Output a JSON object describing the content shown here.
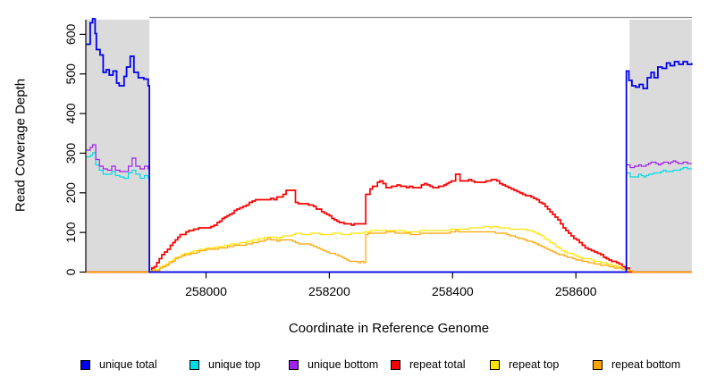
{
  "figure": {
    "background": "#FFFFFF",
    "axis_color": "#000000",
    "top_border_color": "#8A8A8A"
  },
  "legend": {
    "items": [
      {
        "label": "unique total",
        "color": "#0000EE"
      },
      {
        "label": "unique top",
        "color": "#00DDE6"
      },
      {
        "label": "unique bottom",
        "color": "#A020F0"
      },
      {
        "label": "repeat total",
        "color": "#FF0000"
      },
      {
        "label": "repeat top",
        "color": "#FFE400"
      },
      {
        "label": "repeat bottom",
        "color": "#FFA500"
      }
    ]
  },
  "chart_data": {
    "type": "line",
    "title": "",
    "xlabel": "Coordinate in Reference Genome",
    "ylabel": "Read Coverage Depth",
    "xlim": [
      257806,
      258788
    ],
    "ylim": [
      0,
      645
    ],
    "x_ticks": [
      258000,
      258200,
      258400,
      258600
    ],
    "y_ticks": [
      0,
      100,
      200,
      300,
      400,
      500,
      600
    ],
    "grid": false,
    "legend_position": "bottom",
    "shade_color": "#DBDBDB",
    "shaded_regions": [
      {
        "from": 257806,
        "to": 257908
      },
      {
        "from": 258687,
        "to": 258788
      }
    ],
    "series": [
      {
        "name": "unique total",
        "color": "#0000EE",
        "points": [
          [
            257806,
            578
          ],
          [
            257812,
            630
          ],
          [
            257816,
            637
          ],
          [
            257820,
            600
          ],
          [
            257822,
            560
          ],
          [
            257828,
            548
          ],
          [
            257833,
            505
          ],
          [
            257838,
            512
          ],
          [
            257843,
            500
          ],
          [
            257849,
            512
          ],
          [
            257855,
            480
          ],
          [
            257863,
            470
          ],
          [
            257871,
            520
          ],
          [
            257877,
            548
          ],
          [
            257883,
            508
          ],
          [
            257890,
            495
          ],
          [
            257899,
            488
          ],
          [
            257906,
            470
          ],
          [
            257908,
            0
          ],
          [
            258680,
            0
          ],
          [
            258682,
            512
          ],
          [
            258686,
            490
          ],
          [
            258691,
            475
          ],
          [
            258697,
            472
          ],
          [
            258703,
            478
          ],
          [
            258709,
            468
          ],
          [
            258716,
            492
          ],
          [
            258722,
            508
          ],
          [
            258727,
            495
          ],
          [
            258733,
            520
          ],
          [
            258740,
            515
          ],
          [
            258747,
            528
          ],
          [
            258753,
            522
          ],
          [
            258760,
            532
          ],
          [
            258767,
            526
          ],
          [
            258774,
            533
          ],
          [
            258781,
            527
          ],
          [
            258788,
            528
          ]
        ]
      },
      {
        "name": "unique top",
        "color": "#00DDE6",
        "points": [
          [
            257806,
            290
          ],
          [
            257812,
            298
          ],
          [
            257816,
            302
          ],
          [
            257821,
            272
          ],
          [
            257827,
            258
          ],
          [
            257833,
            250
          ],
          [
            257840,
            246
          ],
          [
            257847,
            252
          ],
          [
            257853,
            242
          ],
          [
            257860,
            238
          ],
          [
            257867,
            234
          ],
          [
            257874,
            248
          ],
          [
            257880,
            258
          ],
          [
            257886,
            248
          ],
          [
            257893,
            240
          ],
          [
            257900,
            248
          ],
          [
            257906,
            242
          ],
          [
            257908,
            0
          ],
          [
            258680,
            0
          ],
          [
            258682,
            248
          ],
          [
            258688,
            238
          ],
          [
            258695,
            236
          ],
          [
            258702,
            242
          ],
          [
            258710,
            238
          ],
          [
            258718,
            244
          ],
          [
            258726,
            248
          ],
          [
            258734,
            246
          ],
          [
            258742,
            252
          ],
          [
            258750,
            250
          ],
          [
            258758,
            256
          ],
          [
            258766,
            254
          ],
          [
            258774,
            260
          ],
          [
            258781,
            258
          ],
          [
            258788,
            262
          ]
        ]
      },
      {
        "name": "unique bottom",
        "color": "#A020F0",
        "points": [
          [
            257806,
            308
          ],
          [
            257812,
            315
          ],
          [
            257816,
            320
          ],
          [
            257821,
            285
          ],
          [
            257827,
            266
          ],
          [
            257833,
            258
          ],
          [
            257840,
            255
          ],
          [
            257847,
            262
          ],
          [
            257853,
            252
          ],
          [
            257860,
            250
          ],
          [
            257867,
            248
          ],
          [
            257874,
            262
          ],
          [
            257880,
            285
          ],
          [
            257886,
            262
          ],
          [
            257893,
            255
          ],
          [
            257900,
            262
          ],
          [
            257906,
            255
          ],
          [
            257908,
            0
          ],
          [
            258680,
            0
          ],
          [
            258682,
            268
          ],
          [
            258688,
            262
          ],
          [
            258695,
            264
          ],
          [
            258702,
            270
          ],
          [
            258710,
            266
          ],
          [
            258718,
            272
          ],
          [
            258726,
            278
          ],
          [
            258734,
            270
          ],
          [
            258742,
            274
          ],
          [
            258750,
            272
          ],
          [
            258758,
            276
          ],
          [
            258766,
            272
          ],
          [
            258774,
            276
          ],
          [
            258781,
            272
          ],
          [
            258788,
            274
          ]
        ]
      },
      {
        "name": "repeat total",
        "color": "#FF0000",
        "points": [
          [
            257806,
            0
          ],
          [
            257908,
            0
          ],
          [
            257916,
            14
          ],
          [
            257928,
            42
          ],
          [
            257942,
            68
          ],
          [
            257958,
            92
          ],
          [
            257972,
            102
          ],
          [
            257988,
            107
          ],
          [
            258003,
            112
          ],
          [
            258018,
            122
          ],
          [
            258034,
            140
          ],
          [
            258050,
            158
          ],
          [
            258065,
            170
          ],
          [
            258080,
            182
          ],
          [
            258095,
            184
          ],
          [
            258110,
            183
          ],
          [
            258120,
            190
          ],
          [
            258130,
            203
          ],
          [
            258138,
            205
          ],
          [
            258145,
            175
          ],
          [
            258158,
            172
          ],
          [
            258170,
            168
          ],
          [
            258183,
            158
          ],
          [
            258196,
            142
          ],
          [
            258208,
            128
          ],
          [
            258220,
            120
          ],
          [
            258232,
            117
          ],
          [
            258244,
            118
          ],
          [
            258256,
            121
          ],
          [
            258259,
            196
          ],
          [
            258266,
            208
          ],
          [
            258274,
            216
          ],
          [
            258282,
            228
          ],
          [
            258292,
            215
          ],
          [
            258310,
            221
          ],
          [
            258325,
            214
          ],
          [
            258340,
            212
          ],
          [
            258354,
            224
          ],
          [
            258368,
            216
          ],
          [
            258382,
            220
          ],
          [
            258398,
            231
          ],
          [
            258405,
            246
          ],
          [
            258412,
            230
          ],
          [
            258426,
            236
          ],
          [
            258440,
            226
          ],
          [
            258454,
            231
          ],
          [
            258467,
            235
          ],
          [
            258481,
            222
          ],
          [
            258495,
            208
          ],
          [
            258509,
            200
          ],
          [
            258523,
            193
          ],
          [
            258536,
            186
          ],
          [
            258550,
            168
          ],
          [
            258562,
            150
          ],
          [
            258575,
            125
          ],
          [
            258588,
            100
          ],
          [
            258601,
            82
          ],
          [
            258615,
            66
          ],
          [
            258630,
            52
          ],
          [
            258645,
            42
          ],
          [
            258658,
            32
          ],
          [
            258670,
            22
          ],
          [
            258680,
            10
          ],
          [
            258687,
            3
          ],
          [
            258692,
            0
          ],
          [
            258788,
            0
          ]
        ]
      },
      {
        "name": "repeat top",
        "color": "#FFE400",
        "points": [
          [
            257806,
            0
          ],
          [
            257908,
            0
          ],
          [
            257920,
            8
          ],
          [
            257935,
            24
          ],
          [
            257950,
            38
          ],
          [
            257965,
            48
          ],
          [
            257980,
            55
          ],
          [
            257995,
            60
          ],
          [
            258010,
            63
          ],
          [
            258025,
            67
          ],
          [
            258040,
            72
          ],
          [
            258055,
            74
          ],
          [
            258070,
            77
          ],
          [
            258085,
            84
          ],
          [
            258100,
            90
          ],
          [
            258115,
            88
          ],
          [
            258130,
            93
          ],
          [
            258145,
            98
          ],
          [
            258160,
            97
          ],
          [
            258175,
            99
          ],
          [
            258190,
            97
          ],
          [
            258205,
            98
          ],
          [
            258220,
            96
          ],
          [
            258235,
            98
          ],
          [
            258250,
            97
          ],
          [
            258257,
            100
          ],
          [
            258272,
            103
          ],
          [
            258287,
            102
          ],
          [
            258302,
            104
          ],
          [
            258317,
            103
          ],
          [
            258332,
            102
          ],
          [
            258347,
            104
          ],
          [
            258362,
            105
          ],
          [
            258377,
            104
          ],
          [
            258392,
            106
          ],
          [
            258405,
            112
          ],
          [
            258418,
            108
          ],
          [
            258432,
            110
          ],
          [
            258446,
            112
          ],
          [
            258460,
            113
          ],
          [
            258474,
            114
          ],
          [
            258488,
            112
          ],
          [
            258502,
            110
          ],
          [
            258516,
            108
          ],
          [
            258530,
            104
          ],
          [
            258544,
            92
          ],
          [
            258558,
            78
          ],
          [
            258572,
            62
          ],
          [
            258586,
            50
          ],
          [
            258600,
            42
          ],
          [
            258615,
            35
          ],
          [
            258630,
            30
          ],
          [
            258645,
            25
          ],
          [
            258658,
            20
          ],
          [
            258670,
            14
          ],
          [
            258680,
            7
          ],
          [
            258687,
            2
          ],
          [
            258692,
            0
          ],
          [
            258788,
            0
          ]
        ]
      },
      {
        "name": "repeat bottom",
        "color": "#FFA500",
        "points": [
          [
            257806,
            0
          ],
          [
            257908,
            0
          ],
          [
            257920,
            6
          ],
          [
            257935,
            20
          ],
          [
            257950,
            34
          ],
          [
            257965,
            44
          ],
          [
            257980,
            51
          ],
          [
            257995,
            57
          ],
          [
            258010,
            60
          ],
          [
            258025,
            63
          ],
          [
            258040,
            68
          ],
          [
            258055,
            70
          ],
          [
            258070,
            73
          ],
          [
            258085,
            79
          ],
          [
            258100,
            85
          ],
          [
            258115,
            80
          ],
          [
            258130,
            83
          ],
          [
            258145,
            74
          ],
          [
            258160,
            72
          ],
          [
            258175,
            66
          ],
          [
            258190,
            58
          ],
          [
            258205,
            48
          ],
          [
            258220,
            38
          ],
          [
            258232,
            30
          ],
          [
            258243,
            28
          ],
          [
            258251,
            27
          ],
          [
            258256,
            26
          ],
          [
            258259,
            95
          ],
          [
            258272,
            97
          ],
          [
            258287,
            98
          ],
          [
            258302,
            100
          ],
          [
            258317,
            99
          ],
          [
            258332,
            98
          ],
          [
            258347,
            99
          ],
          [
            258362,
            100
          ],
          [
            258377,
            99
          ],
          [
            258392,
            100
          ],
          [
            258405,
            105
          ],
          [
            258418,
            101
          ],
          [
            258432,
            102
          ],
          [
            258446,
            101
          ],
          [
            258460,
            99
          ],
          [
            258474,
            97
          ],
          [
            258488,
            93
          ],
          [
            258502,
            87
          ],
          [
            258516,
            79
          ],
          [
            258530,
            71
          ],
          [
            258544,
            62
          ],
          [
            258558,
            52
          ],
          [
            258572,
            44
          ],
          [
            258586,
            38
          ],
          [
            258600,
            33
          ],
          [
            258615,
            28
          ],
          [
            258630,
            22
          ],
          [
            258645,
            17
          ],
          [
            258658,
            13
          ],
          [
            258670,
            9
          ],
          [
            258680,
            5
          ],
          [
            258687,
            2
          ],
          [
            258692,
            0
          ],
          [
            258788,
            0
          ]
        ]
      }
    ]
  }
}
